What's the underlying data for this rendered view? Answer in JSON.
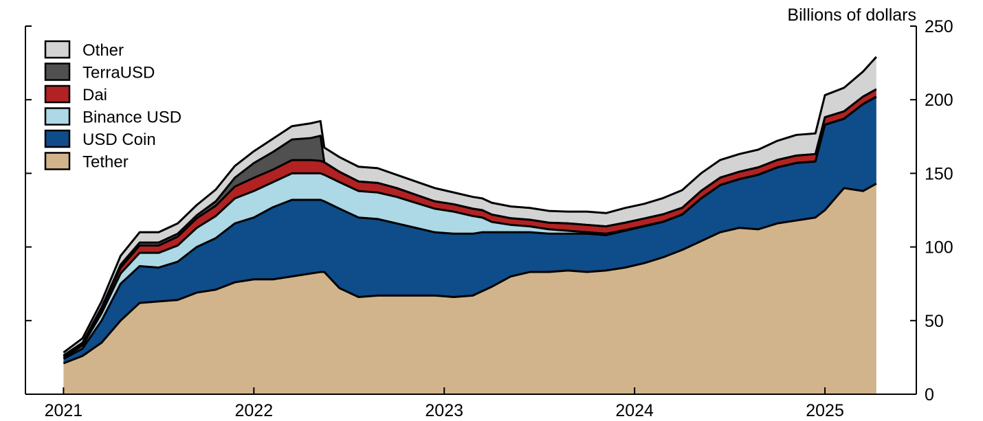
{
  "chart_data": {
    "type": "area",
    "stacked": true,
    "unit_label": "Billions of dollars",
    "x_ticks": [
      "2021",
      "2022",
      "2023",
      "2024",
      "2025"
    ],
    "y_ticks": [
      "0",
      "50",
      "100",
      "150",
      "200",
      "250"
    ],
    "ylim": [
      0,
      250
    ],
    "xlim": [
      2020.8,
      2025.48
    ],
    "y_axis_side": "right",
    "grid": false,
    "legend_position": "top-left",
    "x": [
      2021.0,
      2021.1,
      2021.2,
      2021.3,
      2021.4,
      2021.5,
      2021.6,
      2021.7,
      2021.8,
      2021.9,
      2022.0,
      2022.1,
      2022.2,
      2022.3,
      2022.35,
      2022.37,
      2022.45,
      2022.55,
      2022.65,
      2022.75,
      2022.85,
      2022.95,
      2023.05,
      2023.15,
      2023.2,
      2023.25,
      2023.35,
      2023.45,
      2023.55,
      2023.65,
      2023.75,
      2023.85,
      2023.95,
      2024.05,
      2024.15,
      2024.25,
      2024.35,
      2024.45,
      2024.55,
      2024.65,
      2024.75,
      2024.85,
      2024.95,
      2025.0,
      2025.1,
      2025.2,
      2025.27
    ],
    "series": [
      {
        "name": "Tether",
        "color": "#d2b48c",
        "values": [
          21,
          26,
          35,
          50,
          62,
          63,
          64,
          69,
          71,
          76,
          78,
          78,
          80,
          82,
          83,
          83,
          72,
          66,
          67,
          67,
          67,
          67,
          66,
          67,
          70,
          73,
          80,
          83,
          83,
          84,
          83,
          84,
          86,
          89,
          93,
          98,
          104,
          110,
          113,
          112,
          116,
          118,
          120,
          125,
          140,
          138,
          143
        ]
      },
      {
        "name": "USD Coin",
        "color": "#0f4c8a",
        "values": [
          3,
          5,
          15,
          25,
          25,
          23,
          26,
          31,
          35,
          40,
          42,
          49,
          52,
          50,
          49,
          48,
          54,
          54,
          52,
          49,
          46,
          43,
          43,
          42,
          40,
          37,
          30,
          27,
          26,
          25,
          26,
          24,
          25,
          25,
          24,
          24,
          29,
          32,
          33,
          37,
          38,
          39,
          38,
          58,
          47,
          59,
          59
        ]
      },
      {
        "name": "Binance USD",
        "color": "#add8e6",
        "values": [
          1,
          2,
          5,
          7,
          9,
          10,
          11,
          13,
          15,
          17,
          18,
          17,
          18,
          18,
          18,
          18,
          18,
          18,
          18,
          18,
          17,
          16,
          15,
          12,
          10,
          7,
          5,
          4,
          3,
          2,
          1,
          1,
          0.5,
          0.3,
          0.2,
          0.1,
          0.1,
          0.1,
          0.1,
          0.1,
          0.1,
          0.1,
          0.1,
          0.1,
          0.1,
          0.1,
          0.1
        ]
      },
      {
        "name": "Dai",
        "color": "#b22222",
        "values": [
          1,
          1.5,
          3,
          4,
          5,
          5,
          6,
          6.5,
          7,
          8,
          9,
          8.5,
          9,
          9,
          8.5,
          8.5,
          7,
          6.5,
          6.5,
          6,
          5.5,
          5,
          5,
          5,
          5,
          5,
          4.5,
          4.5,
          4.5,
          5,
          5,
          5,
          5,
          5,
          5,
          4.5,
          5,
          5,
          5,
          5,
          5,
          5,
          5,
          5,
          5,
          5,
          5
        ]
      },
      {
        "name": "TerraUSD",
        "color": "#505050",
        "values": [
          0.3,
          0.5,
          1,
          2,
          2,
          2,
          2,
          2,
          3,
          6,
          10,
          12,
          14,
          15,
          17,
          0,
          0,
          0,
          0,
          0,
          0,
          0,
          0,
          0,
          0,
          0,
          0,
          0,
          0,
          0,
          0,
          0,
          0,
          0,
          0,
          0,
          0,
          0,
          0,
          0,
          0,
          0,
          0,
          0,
          0,
          0,
          0
        ]
      },
      {
        "name": "Other",
        "color": "#d3d3d3",
        "values": [
          2,
          3,
          4,
          6,
          7,
          7,
          7,
          7,
          8,
          8,
          8,
          9,
          9,
          10,
          10,
          10,
          10,
          10,
          10,
          9,
          9,
          9,
          8,
          8,
          8,
          8,
          8,
          8,
          8,
          8,
          9,
          9,
          10,
          10,
          11,
          12,
          12,
          12,
          12,
          12,
          13,
          14,
          14,
          15,
          16,
          17,
          22
        ]
      }
    ]
  }
}
